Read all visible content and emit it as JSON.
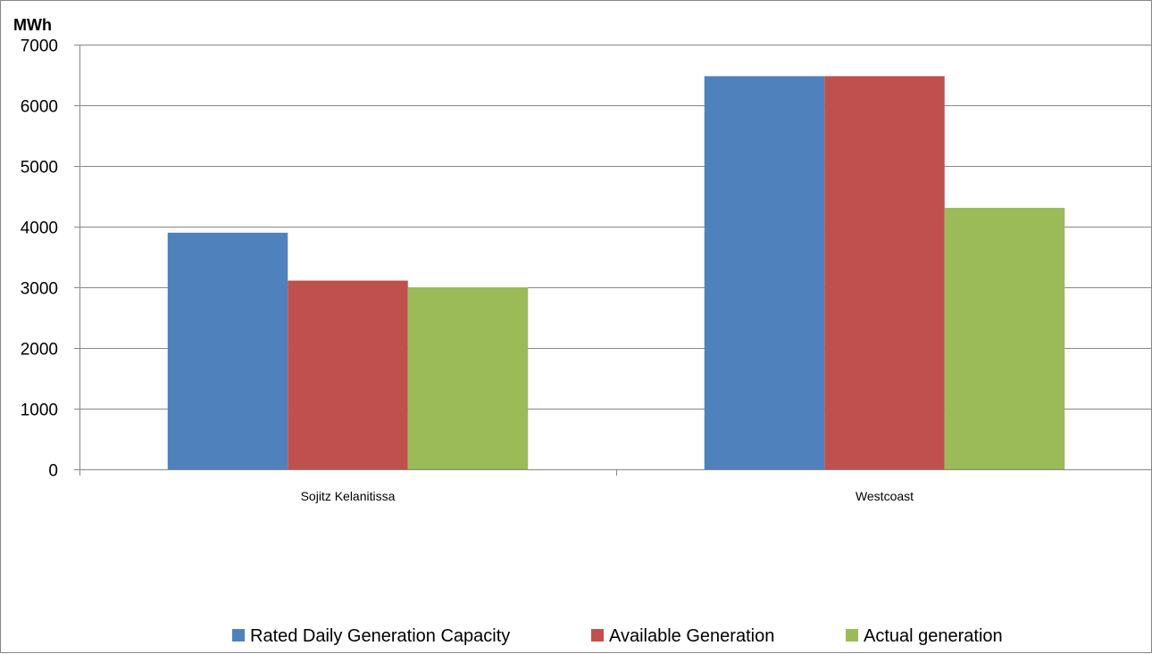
{
  "chart_data": {
    "type": "bar",
    "unit_label": "MWh",
    "categories": [
      "Sojitz Kelanitissa",
      "Westcoast"
    ],
    "series": [
      {
        "name": "Rated Daily Generation Capacity",
        "values": [
          3900,
          6480
        ],
        "color": "#4F81BD"
      },
      {
        "name": "Available Generation",
        "values": [
          3110,
          6480
        ],
        "color": "#C0504D"
      },
      {
        "name": "Actual generation",
        "values": [
          3000,
          4310
        ],
        "color": "#9BBB59"
      }
    ],
    "yticks": [
      0,
      1000,
      2000,
      3000,
      4000,
      5000,
      6000,
      7000
    ],
    "ylim": [
      0,
      7000
    ],
    "grid": true,
    "legend_position": "bottom"
  }
}
